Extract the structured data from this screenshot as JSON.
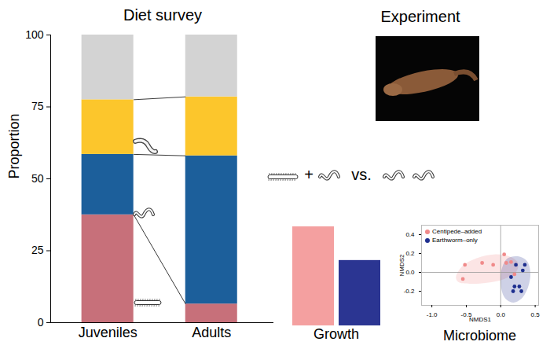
{
  "chart_data": [
    {
      "type": "bar",
      "title": "Diet survey",
      "stacked": true,
      "categories": [
        "Juveniles",
        "Adults"
      ],
      "ylabel": "Proportion",
      "ylim": [
        0,
        100
      ],
      "yticks": [
        0,
        25,
        50,
        75,
        100
      ],
      "series": [
        {
          "color": "#c7707a",
          "values": [
            37.5,
            6.5
          ]
        },
        {
          "color": "#1c5f9b",
          "values": [
            21,
            51.5
          ]
        },
        {
          "color": "#fcc62c",
          "values": [
            19,
            20.5
          ]
        },
        {
          "color": "#d3d3d3",
          "values": [
            22.5,
            21.5
          ]
        }
      ]
    },
    {
      "type": "bar",
      "title": "Experiment",
      "annotations": [
        "+",
        "vs."
      ],
      "caption": "Growth",
      "categories": [
        null,
        null
      ],
      "values": [
        1,
        0.66
      ],
      "colors": [
        "#f4a0a0",
        "#2b3592"
      ],
      "ylim": [
        0,
        1
      ],
      "tick_labels": false
    },
    {
      "type": "scatter",
      "caption": "Microbiome",
      "xlabel": "NMDS1",
      "ylabel": "NMDS2",
      "xlim": [
        -1.15,
        0.55
      ],
      "ylim": [
        -0.35,
        0.5
      ],
      "xticks": [
        {
          "value": -1,
          "label": "-1.0"
        },
        {
          "value": -0.5,
          "label": "-0.5"
        },
        {
          "value": 0,
          "label": "0.0"
        },
        {
          "value": 0.5,
          "label": "0.5"
        }
      ],
      "yticks": [
        {
          "value": -0.2,
          "label": "-0.2"
        },
        {
          "value": 0,
          "label": "0.0"
        },
        {
          "value": 0.2,
          "label": "0.2"
        },
        {
          "value": 0.4,
          "label": "0.4"
        }
      ],
      "legend": "top-left",
      "marker": "circle",
      "ref_lines": {
        "x": 0,
        "y": 0
      },
      "series": [
        {
          "name": "Centipede–added",
          "color": "#f08a8a",
          "x": [
            -0.55,
            -0.52,
            -0.27,
            -0.11,
            0.05,
            0.08,
            0.15,
            0.2
          ],
          "y": [
            -0.07,
            0.08,
            0.1,
            0.08,
            0.19,
            0.1,
            0.11,
            -0.02
          ],
          "ellipse_x": [
            -0.65,
            -0.55,
            -0.35,
            -0.1,
            0.12,
            0.25,
            0.22,
            0.05,
            -0.2,
            -0.45,
            -0.62
          ],
          "ellipse_y": [
            -0.05,
            0.07,
            0.15,
            0.19,
            0.17,
            0.1,
            0.0,
            -0.07,
            -0.11,
            -0.12,
            -0.1
          ]
        },
        {
          "name": "Earthworm–only",
          "color": "#1e2f8f",
          "x": [
            0.15,
            0.2,
            0.18,
            0.27,
            0.3,
            0.35,
            0.32,
            0.22
          ],
          "y": [
            -0.05,
            -0.15,
            -0.2,
            -0.15,
            -0.2,
            0.08,
            0.02,
            0.08
          ],
          "ellipse_x": [
            0.02,
            0.1,
            0.25,
            0.38,
            0.43,
            0.4,
            0.3,
            0.18,
            0.06,
            0.0
          ],
          "ellipse_y": [
            0.05,
            0.15,
            0.17,
            0.12,
            0.0,
            -0.15,
            -0.28,
            -0.32,
            -0.27,
            -0.13
          ]
        }
      ]
    }
  ]
}
